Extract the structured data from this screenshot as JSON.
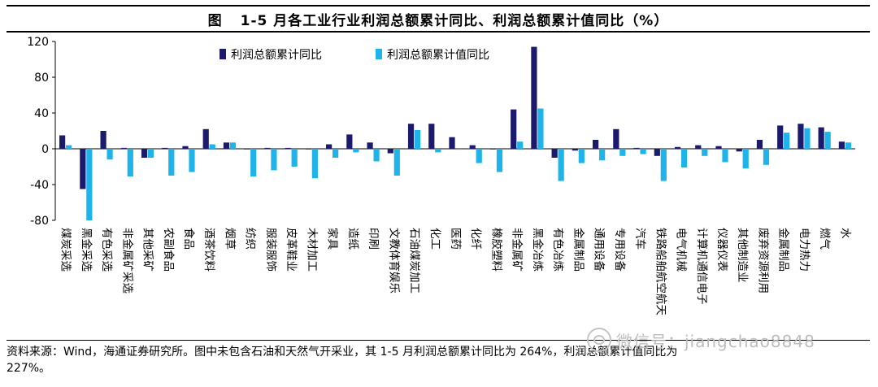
{
  "chart_data": {
    "type": "bar",
    "title_prefix": "图",
    "title": "1-5 月各工业行业利润总额累计同比、利润总额累计值同比（%）",
    "ylim": [
      -80,
      120
    ],
    "yticks": [
      120,
      80,
      40,
      0,
      -40,
      -80
    ],
    "categories": [
      "煤炭采选",
      "黑金采选",
      "有色采选",
      "非金属矿采选",
      "其他采矿",
      "农副食品",
      "食品",
      "酒茶饮料",
      "烟草",
      "纺织",
      "服装服饰",
      "皮革鞋业",
      "木材加工",
      "家具",
      "造纸",
      "印刷",
      "文教体育娱乐",
      "石油煤炭加工",
      "化工",
      "医药",
      "化纤",
      "橡胶塑料",
      "非金属矿",
      "黑金冶炼",
      "有色冶炼",
      "金属制品",
      "通用设备",
      "专用设备",
      "汽车",
      "铁路船舶航空航天",
      "电气机械",
      "计算机通信电子",
      "仪器仪表",
      "其他制造业",
      "废弃资源利用",
      "金属制品",
      "电力热力",
      "燃气",
      "水"
    ],
    "series": [
      {
        "name": "利润总额累计同比",
        "color": "#1c1a6c",
        "values": [
          15,
          -45,
          20,
          1,
          -10,
          1,
          3,
          22,
          7,
          0,
          1,
          1,
          0,
          5,
          16,
          7,
          -5,
          28,
          28,
          13,
          4,
          0,
          44,
          114,
          -10,
          -2,
          10,
          22,
          1,
          -8,
          2,
          4,
          3,
          -3,
          10,
          26,
          28,
          24,
          8
        ]
      },
      {
        "name": "利润总额累计值同比",
        "color": "#1fb3ea",
        "values": [
          4,
          -80,
          -12,
          -31,
          -10,
          -30,
          -26,
          5,
          7,
          -31,
          -24,
          -20,
          -33,
          -10,
          -4,
          -14,
          -30,
          21,
          -4,
          -1,
          -16,
          -26,
          8,
          45,
          -36,
          -16,
          -13,
          -8,
          -6,
          -36,
          -21,
          -8,
          -15,
          -22,
          -18,
          18,
          23,
          19,
          7
        ]
      }
    ]
  },
  "source": {
    "line1": "资料来源：Wind，海通证券研究所。图中未包含石油和天然气开采业，其 1-5 月利润总额累计同比为 264%，利润总额累计值同比为",
    "line2": "227%。"
  },
  "watermark": "微信号：jiangchao8848"
}
